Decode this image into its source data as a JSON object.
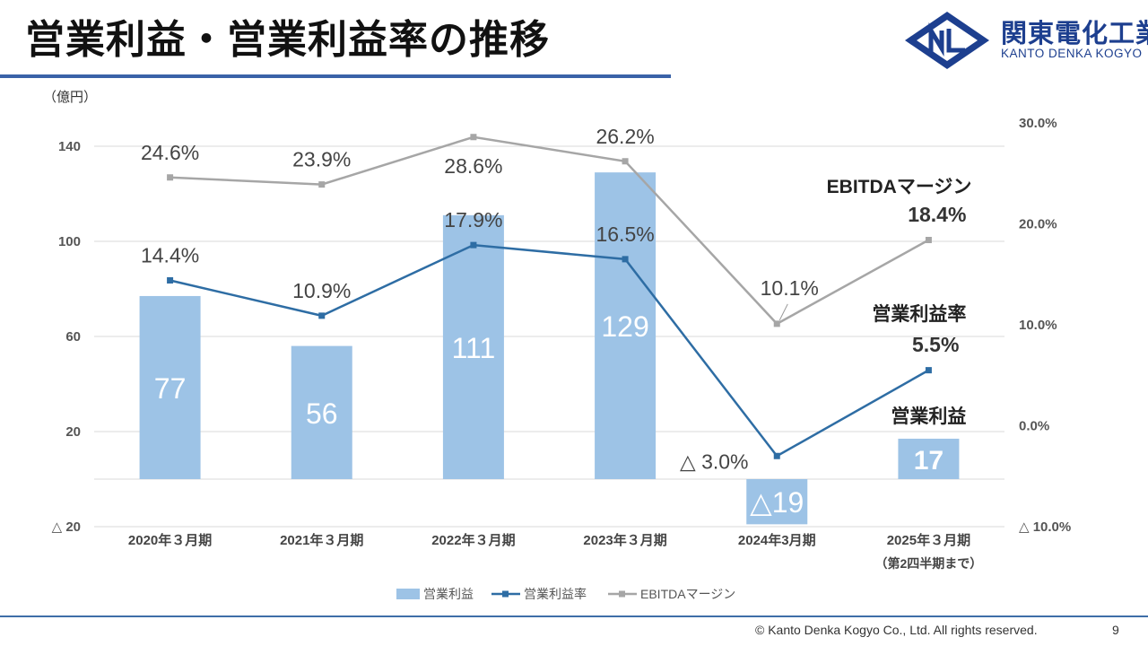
{
  "header": {
    "title": "営業利益・営業利益率の推移",
    "logo_name": "関東電化工業",
    "logo_en": "KANTO DENKA KOGYO"
  },
  "footer": {
    "copyright": "© Kanto Denka Kogyo Co., Ltd. All rights reserved.",
    "page": "9"
  },
  "colors": {
    "bar": "#9dc3e6",
    "rate_line": "#2e6da4",
    "ebitda_line": "#a6a6a6",
    "accent": "#3a62a8"
  },
  "chart_data": {
    "type": "bar",
    "unit_label": "（億円）",
    "categories": [
      "2020年３月期",
      "2021年３月期",
      "2022年３月期",
      "2023年３月期",
      "2024年3月期",
      "2025年３月期"
    ],
    "category_note": "（第2四半期まで）",
    "left_axis": {
      "ylim": [
        -20,
        140
      ],
      "ticks": [
        140,
        100,
        60,
        20,
        -20
      ],
      "tick_labels": [
        "140",
        "100",
        "60",
        "20",
        "△ 20"
      ]
    },
    "right_axis": {
      "ylim": [
        -10,
        30
      ],
      "ticks": [
        30,
        20,
        10,
        0,
        -10
      ],
      "tick_labels": [
        "30.0%",
        "20.0%",
        "10.0%",
        "0.0%",
        "△ 10.0%"
      ]
    },
    "series": [
      {
        "name": "営業利益",
        "type": "bar",
        "axis": "left",
        "values": [
          77,
          56,
          111,
          129,
          -19,
          17
        ],
        "labels": [
          "77",
          "56",
          "111",
          "129",
          "△19",
          "17"
        ]
      },
      {
        "name": "営業利益率",
        "type": "line",
        "axis": "right",
        "values": [
          14.4,
          10.9,
          17.9,
          16.5,
          -3.0,
          5.5
        ],
        "labels": [
          "14.4%",
          "10.9%",
          "17.9%",
          "16.5%",
          "△ 3.0%",
          "5.5%"
        ]
      },
      {
        "name": "EBITDAマージン",
        "type": "line",
        "axis": "right",
        "values": [
          24.6,
          23.9,
          28.6,
          26.2,
          10.1,
          18.4
        ],
        "labels": [
          "24.6%",
          "23.9%",
          "28.6%",
          "26.2%",
          "10.1%",
          "18.4%"
        ]
      }
    ],
    "annotations": {
      "ebitda": "EBITDAマージン",
      "rate": "営業利益率",
      "profit": "営業利益"
    },
    "legend": [
      "営業利益",
      "営業利益率",
      "EBITDAマージン"
    ],
    "legend_position": "bottom"
  }
}
